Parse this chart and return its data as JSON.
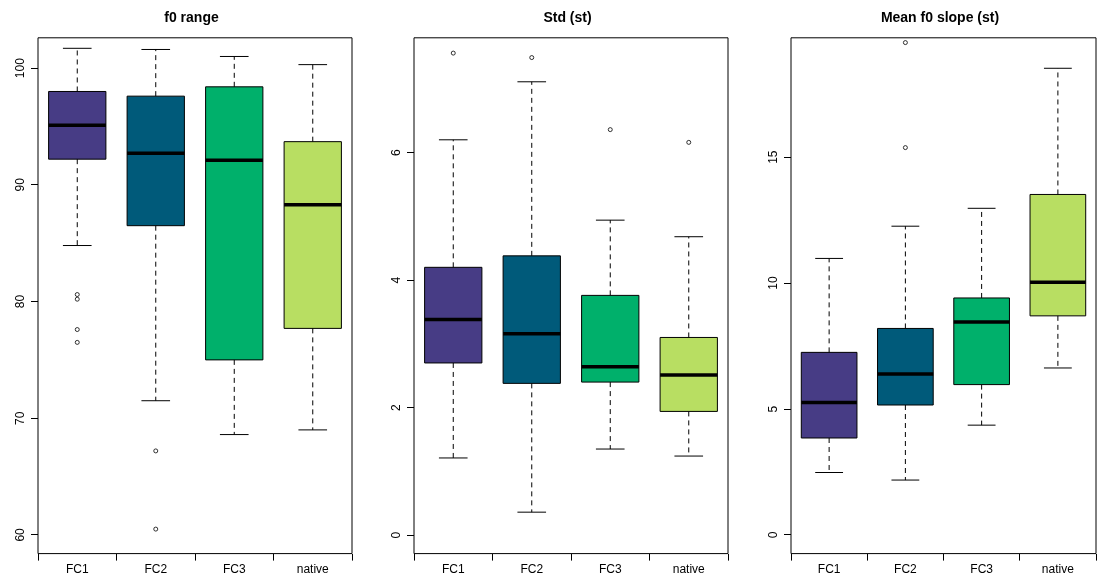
{
  "chart_data": [
    {
      "type": "box",
      "title": "f0 range",
      "categories": [
        "FC1",
        "FC2",
        "FC3",
        "native"
      ],
      "colors": [
        "#473c85",
        "#005a7a",
        "#00b06b",
        "#b8de62"
      ],
      "ylim": [
        58.4,
        102.6
      ],
      "yticks": [
        60,
        70,
        80,
        90,
        100
      ],
      "grid": false,
      "boxes": [
        {
          "low": 84.8,
          "q1": 92.2,
          "median": 95.1,
          "q3": 98.0,
          "high": 101.7,
          "outliers": [
            80.6,
            80.2,
            77.6,
            76.5
          ]
        },
        {
          "low": 71.5,
          "q1": 86.5,
          "median": 92.7,
          "q3": 97.6,
          "high": 101.6,
          "outliers": [
            67.2,
            60.5
          ]
        },
        {
          "low": 68.6,
          "q1": 75.0,
          "median": 92.1,
          "q3": 98.4,
          "high": 101.0
        },
        {
          "low": 69.0,
          "q1": 77.7,
          "median": 88.3,
          "q3": 93.7,
          "high": 100.3
        }
      ]
    },
    {
      "type": "box",
      "title": "Std (st)",
      "categories": [
        "FC1",
        "FC2",
        "FC3",
        "native"
      ],
      "colors": [
        "#473c85",
        "#005a7a",
        "#00b06b",
        "#b8de62"
      ],
      "ylim": [
        -0.29,
        7.8
      ],
      "yticks": [
        0,
        2,
        4,
        6
      ],
      "grid": false,
      "boxes": [
        {
          "low": 1.21,
          "q1": 2.7,
          "median": 3.38,
          "q3": 4.2,
          "high": 6.2,
          "outliers": [
            7.56
          ]
        },
        {
          "low": 0.36,
          "q1": 2.38,
          "median": 3.16,
          "q3": 4.38,
          "high": 7.11,
          "outliers": [
            7.49
          ]
        },
        {
          "low": 1.35,
          "q1": 2.4,
          "median": 2.64,
          "q3": 3.76,
          "high": 4.94,
          "outliers": [
            6.36
          ]
        },
        {
          "low": 1.24,
          "q1": 1.94,
          "median": 2.51,
          "q3": 3.1,
          "high": 4.68,
          "outliers": [
            6.16
          ]
        }
      ]
    },
    {
      "type": "box",
      "title": "Mean f0 slope (st)",
      "categories": [
        "FC1",
        "FC2",
        "FC3",
        "native"
      ],
      "colors": [
        "#473c85",
        "#005a7a",
        "#00b06b",
        "#b8de62"
      ],
      "ylim": [
        -0.74,
        19.74
      ],
      "yticks": [
        0,
        5,
        10,
        15
      ],
      "grid": false,
      "boxes": [
        {
          "low": 2.48,
          "q1": 3.85,
          "median": 5.26,
          "q3": 7.25,
          "high": 10.98
        },
        {
          "low": 2.18,
          "q1": 5.16,
          "median": 6.39,
          "q3": 8.2,
          "high": 12.26,
          "outliers": [
            19.55,
            15.38
          ]
        },
        {
          "low": 4.36,
          "q1": 5.97,
          "median": 8.46,
          "q3": 9.41,
          "high": 12.97
        },
        {
          "low": 6.63,
          "q1": 8.7,
          "median": 10.03,
          "q3": 13.52,
          "high": 18.53
        }
      ]
    }
  ]
}
